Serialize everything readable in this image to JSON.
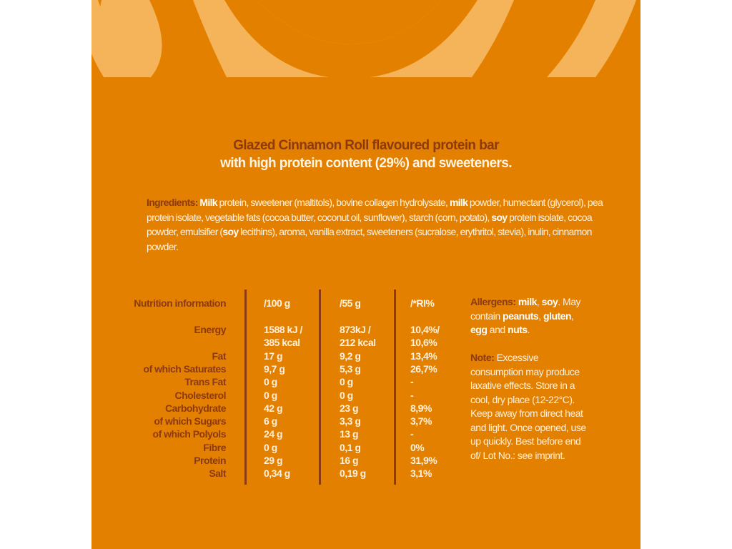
{
  "colors": {
    "background": "#E48000",
    "swirl": "#F5B45A",
    "label": "#8B3A12",
    "text": "#FFF0DC"
  },
  "title": {
    "line1": "Glazed Cinnamon Roll flavoured protein bar",
    "line2": "with high protein content (29%) and sweeteners."
  },
  "ingredients": [
    {
      "text": "Ingredients: ",
      "style": "h"
    },
    {
      "text": "Milk",
      "style": "b"
    },
    {
      "text": " protein, sweetener (maltitols), bovine collagen hydrolysate, ",
      "style": ""
    },
    {
      "text": "milk",
      "style": "b"
    },
    {
      "text": " powder, humectant (glycerol), pea protein isolate, vegetable fats (cocoa butter, coconut oil, sunflower), starch (corn, potato), ",
      "style": ""
    },
    {
      "text": "soy",
      "style": "b"
    },
    {
      "text": " protein isolate, cocoa powder, emulsifier (",
      "style": ""
    },
    {
      "text": "soy",
      "style": "b"
    },
    {
      "text": " lecithins), aroma, vanilla extract, sweeteners (sucralose, erythritol, stevia), inulin, cinnamon powder.",
      "style": ""
    }
  ],
  "table": {
    "headers": [
      "Nutrition information",
      "/100 g",
      "/55 g",
      "/*RI%"
    ],
    "rows": [
      {
        "label": "Energy",
        "per100": "1588 kJ /",
        "per55": "873kJ /",
        "ri": "10,4%/"
      },
      {
        "label": "",
        "per100": "385 kcal",
        "per55": "212 kcal",
        "ri": "10,6%"
      },
      {
        "label": "Fat",
        "per100": "17 g",
        "per55": "9,2 g",
        "ri": "13,4%"
      },
      {
        "label": "of which Saturates",
        "per100": "9,7 g",
        "per55": "5,3 g",
        "ri": "26,7%"
      },
      {
        "label": "Trans Fat",
        "per100": "0 g",
        "per55": "0 g",
        "ri": "-"
      },
      {
        "label": "Cholesterol",
        "per100": "0 g",
        "per55": "0 g",
        "ri": "-"
      },
      {
        "label": "Carbohydrate",
        "per100": "42 g",
        "per55": "23 g",
        "ri": "8,9%"
      },
      {
        "label": "of which Sugars",
        "per100": "6 g",
        "per55": "3,3 g",
        "ri": "3,7%"
      },
      {
        "label": "of which Polyols",
        "per100": "24 g",
        "per55": "13 g",
        "ri": "-"
      },
      {
        "label": "Fibre",
        "per100": "0 g",
        "per55": "0,1 g",
        "ri": "0%"
      },
      {
        "label": "Protein",
        "per100": "29 g",
        "per55": "16 g",
        "ri": "31,9%"
      },
      {
        "label": "Salt",
        "per100": "0,34 g",
        "per55": "0,19 g",
        "ri": "3,1%"
      }
    ]
  },
  "allergens": [
    {
      "text": "Allergens: ",
      "style": "h"
    },
    {
      "text": "milk",
      "style": "b"
    },
    {
      "text": ", ",
      "style": ""
    },
    {
      "text": "soy",
      "style": "b"
    },
    {
      "text": ". May contain ",
      "style": ""
    },
    {
      "text": "peanuts",
      "style": "b"
    },
    {
      "text": ", ",
      "style": ""
    },
    {
      "text": "gluten",
      "style": "b"
    },
    {
      "text": ", ",
      "style": ""
    },
    {
      "text": "egg",
      "style": "b"
    },
    {
      "text": " and ",
      "style": ""
    },
    {
      "text": "nuts",
      "style": "b"
    },
    {
      "text": ".",
      "style": ""
    }
  ],
  "note": [
    {
      "text": "Note: ",
      "style": "h"
    },
    {
      "text": "Excessive consumption may produce laxative effects. Store in a cool, dry place (12-22°C). Keep away from direct heat and light. Once opened, use up quickly. Best before end of/ Lot No.: see imprint.",
      "style": ""
    }
  ]
}
